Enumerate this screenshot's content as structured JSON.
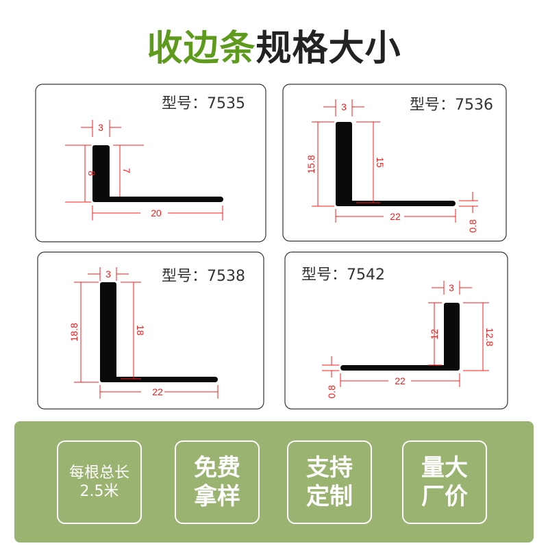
{
  "title": {
    "highlight": "收边条",
    "rest": "规格大小",
    "highlight_color": "#5e9a1c"
  },
  "profiles": [
    {
      "model": "型号：7535",
      "width": "3",
      "height_outer": "8",
      "height_inner": "7",
      "length": "20"
    },
    {
      "model": "型号：7536",
      "width": "3",
      "height_outer": "15.8",
      "height_inner": "15",
      "length": "22",
      "thickness": "0.8"
    },
    {
      "model": "型号：7538",
      "width": "3",
      "height_outer": "18.8",
      "height_inner": "18",
      "length": "22"
    },
    {
      "model": "型号：7542",
      "width": "3",
      "height_outer": "12.8",
      "height_inner": "12",
      "length": "22",
      "thickness": "0.8"
    }
  ],
  "dimension_color": "#ff1a1a",
  "features": [
    {
      "line1": "每根总长",
      "line2": "2.5米"
    },
    {
      "line1": "免费",
      "line2": "拿样"
    },
    {
      "line1": "支持",
      "line2": "定制"
    },
    {
      "line1": "量大",
      "line2": "厂价"
    }
  ],
  "panel_color": "#9ab370"
}
